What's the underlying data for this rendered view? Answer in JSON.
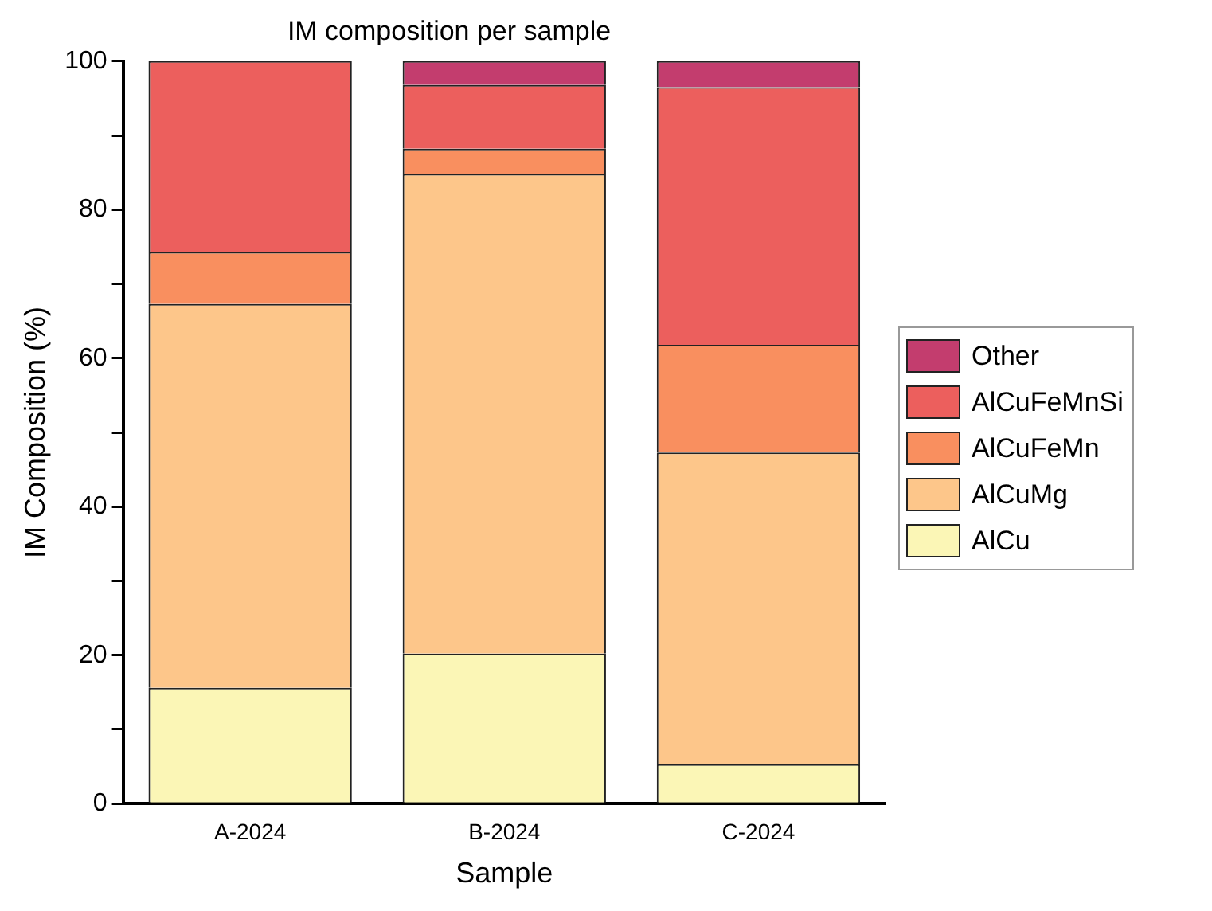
{
  "chart_data": {
    "type": "bar",
    "title": "IM composition per sample",
    "xlabel": "Sample",
    "ylabel": "IM Composition (%)",
    "categories": [
      "A-2024",
      "B-2024",
      "C-2024"
    ],
    "stacked": true,
    "series": [
      {
        "name": "AlCu",
        "color": "#fbf6b6",
        "values": [
          15.6,
          20.2,
          5.3
        ]
      },
      {
        "name": "AlCuMg",
        "color": "#fdc68a",
        "values": [
          51.7,
          64.6,
          42.0
        ]
      },
      {
        "name": "AlCuFeMn",
        "color": "#f98f5f",
        "values": [
          7.0,
          3.4,
          14.5
        ]
      },
      {
        "name": "AlCuFeMnSi",
        "color": "#ec5f5d",
        "values": [
          25.7,
          8.6,
          34.7
        ]
      },
      {
        "name": "Other",
        "color": "#c33d6e",
        "values": [
          0,
          3.2,
          3.5
        ]
      }
    ],
    "ylim": [
      0,
      100
    ],
    "yticks": [
      0,
      {
        "value": 10,
        "label": null
      },
      20,
      {
        "value": 30,
        "label": null
      },
      40,
      {
        "value": 50,
        "label": null
      },
      60,
      {
        "value": 70,
        "label": null
      },
      80,
      {
        "value": 90,
        "label": null
      },
      100
    ],
    "grid": false,
    "legend": "right"
  }
}
